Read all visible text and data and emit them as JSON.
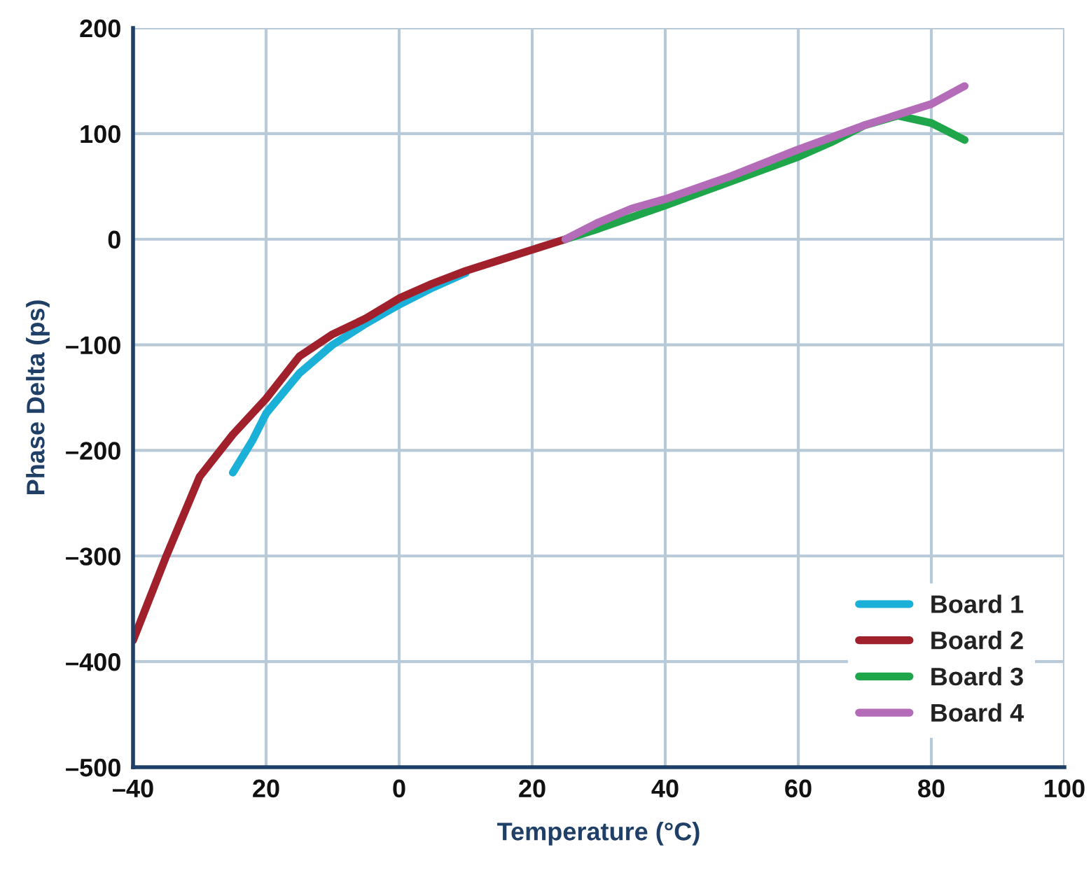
{
  "chart_data": {
    "type": "line",
    "xlabel": "Temperature (°C)",
    "ylabel": "Phase Delta (ps)",
    "xlim": [
      -40,
      100
    ],
    "xticks": [
      {
        "value": -40,
        "label": "–40"
      },
      {
        "value": -20,
        "label": "20"
      },
      0,
      20,
      40,
      60,
      80,
      100
    ],
    "ylim": [
      -500,
      200
    ],
    "yticks": [
      {
        "value": -500,
        "label": "–500"
      },
      {
        "value": -400,
        "label": "–400"
      },
      {
        "value": -300,
        "label": "–300"
      },
      {
        "value": -200,
        "label": "–200"
      },
      {
        "value": -100,
        "label": "–100"
      },
      0,
      100,
      200
    ],
    "grid": true,
    "legend": "bottom right",
    "marker": "none",
    "line_style": "solid",
    "series": [
      {
        "name": "Board 1",
        "color": "#1ab0d8",
        "x": [
          -25,
          -22,
          -20,
          -15,
          -10,
          -5,
          0,
          5,
          10
        ],
        "values": [
          -221,
          -190,
          -165,
          -127,
          -100,
          -80,
          -62,
          -46,
          -32
        ]
      },
      {
        "name": "Board 2",
        "color": "#a0202c",
        "x": [
          -40,
          -35,
          -30,
          -25,
          -20,
          -15,
          -10,
          -5,
          0,
          5,
          10,
          15,
          20,
          25
        ],
        "values": [
          -380,
          -300,
          -225,
          -185,
          -151,
          -111,
          -90,
          -75,
          -56,
          -42,
          -30,
          -20,
          -10,
          0
        ]
      },
      {
        "name": "Board 3",
        "color": "#1fa64a",
        "x": [
          25,
          30,
          40,
          50,
          60,
          65,
          70,
          75,
          80,
          85
        ],
        "values": [
          0,
          10,
          32,
          55,
          78,
          92,
          108,
          117,
          110,
          94
        ]
      },
      {
        "name": "Board 4",
        "color": "#b56cb8",
        "x": [
          25,
          30,
          35,
          40,
          50,
          60,
          70,
          80,
          85
        ],
        "values": [
          0,
          16,
          29,
          38,
          60,
          85,
          108,
          128,
          145
        ]
      }
    ]
  }
}
